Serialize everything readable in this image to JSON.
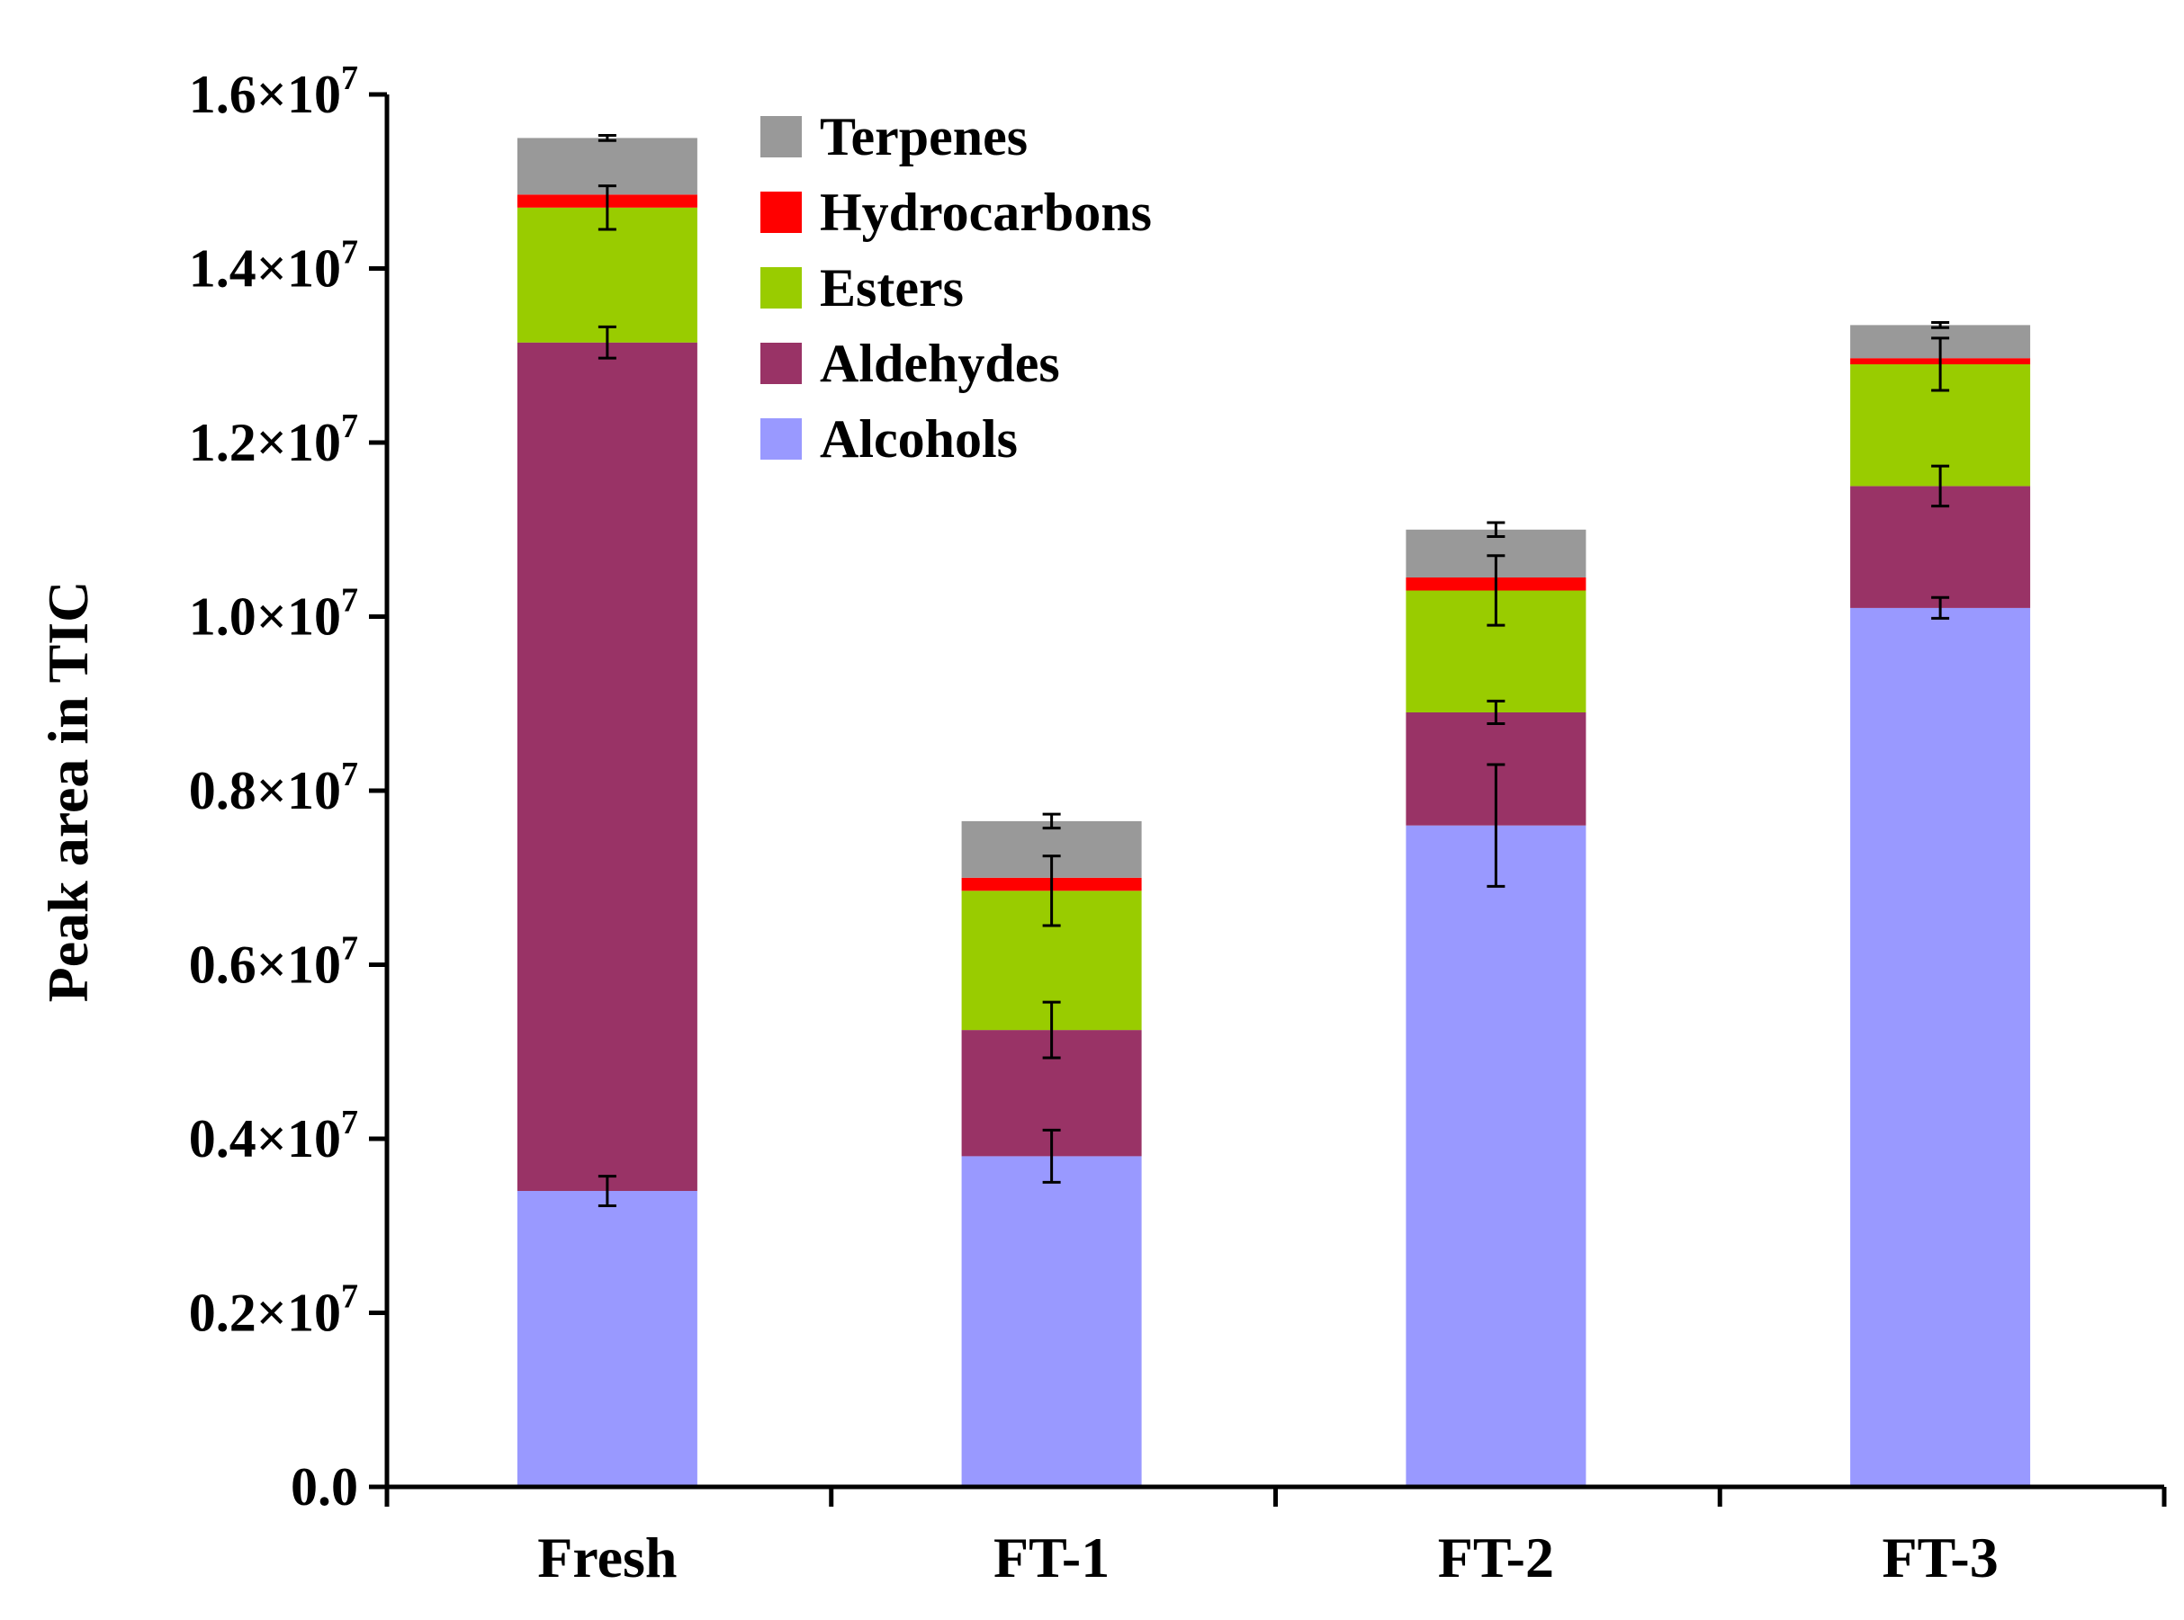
{
  "chart_data": {
    "type": "bar",
    "stacked": true,
    "title": "",
    "xlabel": "",
    "ylabel": "Peak area in TIC",
    "ylim": [
      0,
      16000000
    ],
    "grid": false,
    "legend_position": "top-center",
    "categories": [
      "Fresh",
      "FT-1",
      "FT-2",
      "FT-3"
    ],
    "yticks": [
      {
        "value": 0,
        "mantissa": "0.0",
        "exp": ""
      },
      {
        "value": 2000000,
        "mantissa": "0.2×10",
        "exp": "7"
      },
      {
        "value": 4000000,
        "mantissa": "0.4×10",
        "exp": "7"
      },
      {
        "value": 6000000,
        "mantissa": "0.6×10",
        "exp": "7"
      },
      {
        "value": 8000000,
        "mantissa": "0.8×10",
        "exp": "7"
      },
      {
        "value": 10000000,
        "mantissa": "1.0×10",
        "exp": "7"
      },
      {
        "value": 12000000,
        "mantissa": "1.2×10",
        "exp": "7"
      },
      {
        "value": 14000000,
        "mantissa": "1.4×10",
        "exp": "7"
      },
      {
        "value": 16000000,
        "mantissa": "1.6×10",
        "exp": "7"
      }
    ],
    "series": [
      {
        "name": "Alcohols",
        "color": "#9999ff",
        "values": [
          3400000,
          3800000,
          7600000,
          10100000
        ],
        "errors": [
          170000,
          300000,
          700000,
          120000
        ]
      },
      {
        "name": "Aldehydes",
        "color": "#993366",
        "values": [
          9750000,
          1450000,
          1300000,
          1400000
        ],
        "errors": [
          180000,
          320000,
          130000,
          230000
        ]
      },
      {
        "name": "Esters",
        "color": "#99cc00",
        "values": [
          1550000,
          1600000,
          1400000,
          1400000
        ],
        "errors": [
          250000,
          400000,
          400000,
          300000
        ]
      },
      {
        "name": "Hydrocarbons",
        "color": "#ff0000",
        "values": [
          150000,
          150000,
          150000,
          70000
        ],
        "errors": [
          0,
          0,
          0,
          0
        ]
      },
      {
        "name": "Terpenes",
        "color": "#999999",
        "values": [
          650000,
          650000,
          550000,
          380000
        ],
        "errors": [
          30000,
          80000,
          80000,
          30000
        ]
      }
    ]
  }
}
